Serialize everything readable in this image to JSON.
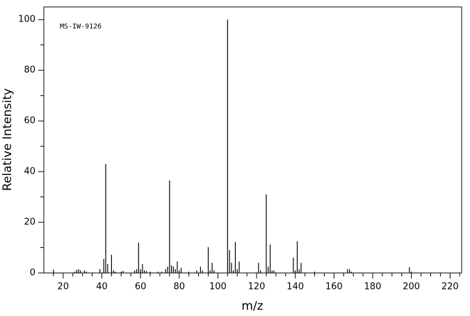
{
  "chart_data": {
    "type": "spectrum",
    "annotation": "MS-IW-9126",
    "x_label": "m/z",
    "y_label": "Relative Intensity",
    "color": "#000000",
    "xlim": [
      10,
      226
    ],
    "ylim": [
      0,
      105
    ],
    "xticks": [
      20,
      40,
      60,
      80,
      100,
      120,
      140,
      160,
      180,
      200,
      220
    ],
    "x_minor_ticks": [
      15,
      25,
      30,
      35,
      45,
      50,
      55,
      65,
      70,
      75,
      85,
      90,
      95,
      105,
      110,
      115,
      125,
      130,
      135,
      145,
      150,
      155,
      165,
      170,
      175,
      185,
      190,
      195,
      205,
      210,
      215,
      225
    ],
    "yticks": [
      0,
      20,
      40,
      60,
      80,
      100
    ],
    "y_minor_ticks": [
      10,
      30,
      50,
      70,
      90
    ],
    "x": [
      15,
      26,
      27,
      28,
      29,
      31,
      32,
      39,
      41,
      42,
      43,
      45,
      46,
      47,
      50,
      51,
      57,
      58,
      59,
      60,
      61,
      62,
      63,
      65,
      69,
      71,
      73,
      74,
      75,
      76,
      77,
      78,
      79,
      80,
      81,
      85,
      89,
      91,
      92,
      95,
      96,
      97,
      98,
      105,
      106,
      107,
      108,
      109,
      110,
      111,
      121,
      122,
      125,
      126,
      127,
      128,
      129,
      139,
      140,
      141,
      142,
      143,
      150,
      167,
      168,
      169,
      199,
      200
    ],
    "values": [
      1.3,
      0.5,
      1.2,
      1.5,
      1.0,
      1.0,
      0.5,
      1.5,
      5.5,
      43,
      3.5,
      7.2,
      1.0,
      0.5,
      0.5,
      0.8,
      1.0,
      1.5,
      12,
      1.5,
      3.5,
      1.0,
      0.8,
      0.5,
      0.5,
      0.5,
      1.5,
      2.5,
      36.5,
      3.0,
      2.5,
      1.5,
      4.5,
      1.0,
      2.0,
      0.5,
      1.0,
      2.5,
      1.0,
      10.2,
      1.0,
      4.0,
      1.0,
      100,
      9.0,
      4.0,
      1.0,
      12.2,
      1.5,
      4.5,
      4.0,
      1.0,
      31,
      2.5,
      11.2,
      1.0,
      1.0,
      6.0,
      1.0,
      12.5,
      1.5,
      4.0,
      0.5,
      1.5,
      1.5,
      0.5,
      2.3,
      0.5
    ]
  }
}
